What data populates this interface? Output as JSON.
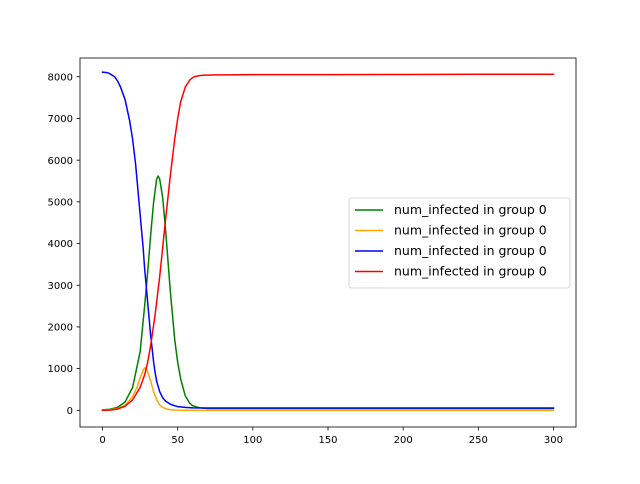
{
  "chart_data": {
    "type": "line",
    "title": "",
    "xlabel": "",
    "ylabel": "",
    "xlim": [
      -15,
      315
    ],
    "ylim": [
      -400,
      8450
    ],
    "xticks": [
      0,
      50,
      100,
      150,
      200,
      250,
      300
    ],
    "yticks": [
      0,
      1000,
      2000,
      3000,
      4000,
      5000,
      6000,
      7000,
      8000
    ],
    "grid": false,
    "legend_position": "center-right",
    "series": [
      {
        "name": "num_infected in group 0",
        "color": "#008000",
        "x": [
          0,
          5,
          10,
          15,
          20,
          25,
          28,
          30,
          32,
          34,
          36,
          37,
          38,
          40,
          42,
          45,
          48,
          50,
          52,
          55,
          58,
          60,
          63,
          65,
          68,
          70,
          75,
          80,
          100,
          150,
          200,
          250,
          300
        ],
        "y": [
          10,
          25,
          70,
          200,
          550,
          1400,
          2500,
          3300,
          4200,
          5000,
          5550,
          5620,
          5550,
          5100,
          4300,
          2900,
          1700,
          1150,
          750,
          350,
          170,
          110,
          75,
          60,
          50,
          45,
          45,
          45,
          45,
          45,
          45,
          45,
          45
        ]
      },
      {
        "name": "num_infected in group 0",
        "color": "#ffa500",
        "x": [
          0,
          5,
          10,
          15,
          20,
          23,
          25,
          27,
          28,
          29,
          30,
          32,
          34,
          36,
          38,
          40,
          43,
          45,
          48,
          50,
          55,
          60,
          70,
          100,
          150,
          200,
          250,
          300
        ],
        "y": [
          5,
          15,
          40,
          120,
          330,
          560,
          780,
          960,
          1020,
          990,
          920,
          700,
          450,
          250,
          130,
          70,
          30,
          15,
          8,
          5,
          2,
          0,
          0,
          0,
          0,
          0,
          0,
          0
        ]
      },
      {
        "name": "num_infected in group 0",
        "color": "#0000ff",
        "x": [
          0,
          3,
          5,
          8,
          10,
          12,
          15,
          18,
          20,
          22,
          25,
          27,
          28,
          30,
          32,
          34,
          35,
          36,
          38,
          40,
          42,
          45,
          48,
          50,
          55,
          60,
          70,
          100,
          150,
          200,
          250,
          300
        ],
        "y": [
          8110,
          8100,
          8070,
          8000,
          7900,
          7750,
          7450,
          6950,
          6500,
          5900,
          4700,
          3900,
          3400,
          2600,
          1800,
          1150,
          900,
          700,
          450,
          300,
          220,
          150,
          110,
          90,
          70,
          60,
          55,
          55,
          55,
          55,
          55,
          55
        ]
      },
      {
        "name": "num_infected in group 0",
        "color": "#ff0000",
        "x": [
          0,
          5,
          10,
          15,
          20,
          25,
          28,
          30,
          32,
          35,
          38,
          40,
          42,
          45,
          48,
          50,
          52,
          55,
          58,
          60,
          62,
          65,
          68,
          70,
          75,
          80,
          100,
          150,
          200,
          250,
          300
        ],
        "y": [
          0,
          5,
          30,
          100,
          250,
          550,
          850,
          1150,
          1550,
          2300,
          3200,
          3900,
          4600,
          5600,
          6500,
          7000,
          7400,
          7750,
          7920,
          7980,
          8010,
          8030,
          8040,
          8040,
          8045,
          8045,
          8050,
          8050,
          8055,
          8060,
          8060
        ]
      }
    ]
  }
}
